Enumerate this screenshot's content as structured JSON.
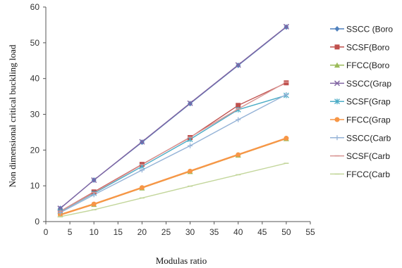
{
  "chart_data": {
    "type": "line",
    "title": "",
    "xlabel": "Modulas ratio",
    "ylabel": "Non dimensional critical buckling load",
    "xlim": [
      0,
      55
    ],
    "ylim": [
      0,
      60
    ],
    "xticks": [
      0,
      5,
      10,
      15,
      20,
      25,
      30,
      35,
      40,
      45,
      50,
      55
    ],
    "yticks": [
      0,
      10,
      20,
      30,
      40,
      50,
      60
    ],
    "grid": false,
    "legend_position": "right",
    "x": [
      3,
      10,
      20,
      30,
      40,
      50
    ],
    "series": [
      {
        "name": "SSCC (Boro",
        "color": "#4f81bd",
        "marker": "diamond",
        "values": [
          3.7,
          11.6,
          22.2,
          33.0,
          43.7,
          54.4
        ]
      },
      {
        "name": "SCSF(Boro",
        "color": "#c0504d",
        "marker": "square",
        "values": [
          2.9,
          8.3,
          16.0,
          23.5,
          32.5,
          38.8
        ]
      },
      {
        "name": "FFCC(Boro",
        "color": "#9bbb59",
        "marker": "triangle",
        "values": [
          1.9,
          4.8,
          9.4,
          14.0,
          18.6,
          23.2
        ]
      },
      {
        "name": "SSCC(Grap",
        "color": "#8064a2",
        "marker": "x",
        "values": [
          3.7,
          11.6,
          22.3,
          33.1,
          43.8,
          54.5
        ]
      },
      {
        "name": "SCSF(Grap",
        "color": "#4bacc6",
        "marker": "asterisk",
        "values": [
          2.8,
          7.9,
          15.4,
          23.0,
          31.3,
          35.3
        ]
      },
      {
        "name": "FFCC(Grap",
        "color": "#f79646",
        "marker": "circle",
        "values": [
          1.9,
          4.9,
          9.5,
          14.1,
          18.7,
          23.3
        ]
      },
      {
        "name": "SSCC(Carb",
        "color": "#95b3d7",
        "marker": "plus",
        "values": [
          2.5,
          7.5,
          14.4,
          21.2,
          28.5,
          35.5
        ]
      },
      {
        "name": "SCSF(Carb",
        "color": "#d99694",
        "marker": "dash",
        "values": [
          2.9,
          8.1,
          15.9,
          23.6,
          31.5,
          39.0
        ]
      },
      {
        "name": "FFCC(Carb",
        "color": "#c3d69b",
        "marker": "dash",
        "values": [
          1.4,
          3.3,
          6.6,
          9.9,
          13.1,
          16.3
        ]
      }
    ]
  }
}
